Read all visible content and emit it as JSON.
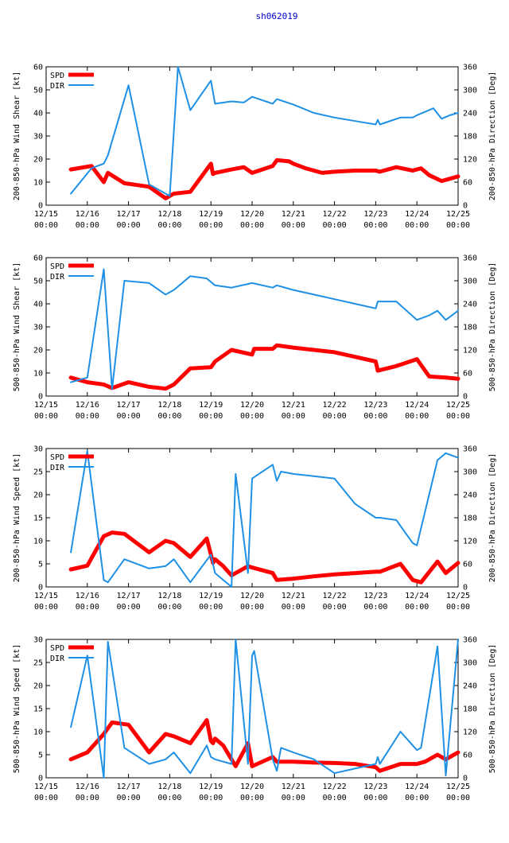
{
  "title": "sh062019",
  "colors": {
    "spd": "#ff0000",
    "dir": "#1e90e6",
    "title": "#0000cc"
  },
  "x_ticks": [
    "12/15\n00:00",
    "12/16\n00:00",
    "12/17\n00:00",
    "12/18\n00:00",
    "12/19\n00:00",
    "12/20\n00:00",
    "12/21\n00:00",
    "12/22\n00:00",
    "12/23\n00:00",
    "12/24\n00:00",
    "12/25\n00:00"
  ],
  "chart_data": [
    {
      "type": "line",
      "ylabel": "200-850-hPa Wind Shear [kt]",
      "y2label": "200-850-hPa Direction [Deg]",
      "ylim": [
        0,
        60
      ],
      "y2lim": [
        0,
        360
      ],
      "yticks": [
        0,
        10,
        20,
        30,
        40,
        50,
        60
      ],
      "y2ticks": [
        0,
        60,
        120,
        180,
        240,
        300,
        360
      ],
      "legend": [
        "SPD",
        "DIR"
      ],
      "xlim": [
        0,
        10
      ],
      "series": [
        {
          "name": "SPD",
          "axis": "left",
          "x": [
            0.6,
            1.1,
            1.4,
            1.5,
            1.9,
            2.5,
            2.9,
            3.1,
            3.5,
            4.0,
            4.05,
            4.1,
            4.5,
            4.8,
            5.0,
            5.5,
            5.6,
            5.9,
            6.0,
            6.3,
            6.5,
            6.7,
            7.0,
            7.5,
            8.0,
            8.1,
            8.5,
            8.9,
            9.1,
            9.3,
            9.6,
            10.0
          ],
          "values": [
            15.5,
            17,
            10,
            14,
            9.5,
            8,
            3,
            5,
            5.8,
            18,
            13.5,
            14,
            15.5,
            16.5,
            14,
            17,
            19.5,
            19,
            18,
            16,
            15,
            14,
            14.5,
            15,
            15,
            14.5,
            16.5,
            15,
            16,
            13,
            10.5,
            12.5
          ]
        },
        {
          "name": "DIR",
          "axis": "right",
          "x": [
            0.6,
            1.1,
            1.4,
            1.5,
            2.0,
            2.5,
            3.0,
            3.2,
            3.5,
            4.0,
            4.1,
            4.5,
            4.8,
            5.0,
            5.5,
            5.6,
            6.0,
            6.5,
            7.0,
            7.5,
            8.0,
            8.05,
            8.1,
            8.6,
            8.9,
            9.0,
            9.4,
            9.6,
            9.8,
            10.0
          ],
          "values": [
            30,
            96,
            108,
            130,
            312,
            54,
            24,
            360,
            247,
            324,
            264,
            270,
            267,
            282,
            264,
            276,
            262,
            240,
            228,
            219,
            210,
            222,
            210,
            228,
            228,
            234,
            252,
            225,
            234,
            240
          ]
        }
      ]
    },
    {
      "type": "line",
      "ylabel": "500-850-hPa Wind Shear [kt]",
      "y2label": "500-850-hPa Direction [Deg]",
      "ylim": [
        0,
        60
      ],
      "y2lim": [
        0,
        360
      ],
      "yticks": [
        0,
        10,
        20,
        30,
        40,
        50,
        60
      ],
      "y2ticks": [
        0,
        60,
        120,
        180,
        240,
        300,
        360
      ],
      "legend": [
        "SPD",
        "DIR"
      ],
      "xlim": [
        0,
        10
      ],
      "series": [
        {
          "name": "SPD",
          "axis": "left",
          "x": [
            0.6,
            1.0,
            1.4,
            1.6,
            2.0,
            2.5,
            2.9,
            3.1,
            3.5,
            4.0,
            4.1,
            4.5,
            5.0,
            5.05,
            5.5,
            5.6,
            6.0,
            6.5,
            7.0,
            7.5,
            8.0,
            8.05,
            8.5,
            9.0,
            9.3,
            9.7,
            10.0
          ],
          "values": [
            8,
            6,
            5,
            3.5,
            6,
            4,
            3.2,
            5,
            12,
            12.5,
            15,
            20,
            18,
            20.5,
            20.5,
            22,
            21,
            20,
            19,
            17,
            15,
            11,
            13,
            16,
            8.5,
            8,
            7.5
          ]
        },
        {
          "name": "DIR",
          "axis": "right",
          "x": [
            0.6,
            1.0,
            1.4,
            1.6,
            1.9,
            2.5,
            2.9,
            3.1,
            3.5,
            3.9,
            4.1,
            4.5,
            5.0,
            5.5,
            5.6,
            6.0,
            6.5,
            7.0,
            7.5,
            8.0,
            8.05,
            8.5,
            9.0,
            9.3,
            9.5,
            9.7,
            10.0
          ],
          "values": [
            36,
            48,
            330,
            18,
            300,
            294,
            264,
            276,
            312,
            306,
            288,
            282,
            294,
            282,
            288,
            276,
            264,
            252,
            240,
            228,
            246,
            246,
            198,
            210,
            222,
            198,
            222
          ]
        }
      ]
    },
    {
      "type": "line",
      "ylabel": "200-850-hPa Wind Speed [kt]",
      "y2label": "200-850-hPa Direction [Deg]",
      "ylim": [
        0,
        30
      ],
      "y2lim": [
        0,
        360
      ],
      "yticks": [
        0,
        5,
        10,
        15,
        20,
        25,
        30
      ],
      "y2ticks": [
        0,
        60,
        120,
        180,
        240,
        300,
        360
      ],
      "legend": [
        "SPD",
        "DIR"
      ],
      "xlim": [
        0,
        10
      ],
      "series": [
        {
          "name": "SPD",
          "axis": "left",
          "x": [
            0.6,
            1.0,
            1.4,
            1.6,
            1.9,
            2.5,
            2.9,
            3.1,
            3.5,
            3.9,
            4.0,
            4.05,
            4.1,
            4.3,
            4.5,
            4.9,
            5.0,
            5.5,
            5.6,
            6.0,
            6.5,
            7.0,
            7.5,
            8.0,
            8.1,
            8.6,
            8.9,
            9.1,
            9.5,
            9.7,
            10.0
          ],
          "values": [
            3.8,
            4.6,
            11,
            11.8,
            11.5,
            7.5,
            10,
            9.5,
            6.5,
            10.5,
            7,
            5.2,
            6,
            4.5,
            2.5,
            4.5,
            4.2,
            3,
            1.5,
            1.8,
            2.3,
            2.7,
            3,
            3.3,
            3.3,
            5,
            1.5,
            1,
            5.5,
            3,
            5.2
          ]
        },
        {
          "name": "DIR",
          "axis": "right",
          "x": [
            0.6,
            1.0,
            1.4,
            1.5,
            1.9,
            2.5,
            2.9,
            3.1,
            3.5,
            4.0,
            4.1,
            4.5,
            4.6,
            4.9,
            5.0,
            5.5,
            5.6,
            5.7,
            6.0,
            6.5,
            7.0,
            7.5,
            8.0,
            8.1,
            8.5,
            8.9,
            9.0,
            9.5,
            9.7,
            10.0
          ],
          "values": [
            90,
            354,
            18,
            12,
            72,
            48,
            54,
            72,
            12,
            84,
            36,
            0,
            294,
            36,
            282,
            318,
            276,
            300,
            294,
            288,
            282,
            216,
            180,
            180,
            174,
            114,
            108,
            330,
            348,
            336
          ]
        }
      ]
    },
    {
      "type": "line",
      "ylabel": "500-850-hPa Wind Speed [kt]",
      "y2label": "500-850-hPa Direction [Deg]",
      "ylim": [
        0,
        30
      ],
      "y2lim": [
        0,
        360
      ],
      "yticks": [
        0,
        5,
        10,
        15,
        20,
        25,
        30
      ],
      "y2ticks": [
        0,
        60,
        120,
        180,
        240,
        300,
        360
      ],
      "legend": [
        "SPD",
        "DIR"
      ],
      "xlim": [
        0,
        10
      ],
      "series": [
        {
          "name": "SPD",
          "axis": "left",
          "x": [
            0.6,
            1.0,
            1.4,
            1.6,
            2.0,
            2.5,
            2.9,
            3.1,
            3.5,
            3.9,
            4.0,
            4.05,
            4.1,
            4.3,
            4.6,
            4.9,
            5.0,
            5.5,
            5.6,
            6.0,
            6.5,
            7.0,
            7.5,
            8.0,
            8.1,
            8.6,
            9.0,
            9.2,
            9.5,
            9.7,
            10.0
          ],
          "values": [
            4,
            5.5,
            9.5,
            12,
            11.5,
            5.5,
            9.5,
            9,
            7.5,
            12.5,
            8,
            7.5,
            8.5,
            7,
            2.5,
            7.5,
            2.5,
            4.5,
            3.5,
            3.5,
            3.3,
            3.2,
            3,
            2.3,
            1.5,
            3,
            3,
            3.5,
            5,
            4,
            5.5
          ]
        },
        {
          "name": "DIR",
          "axis": "right",
          "x": [
            0.6,
            1.0,
            1.4,
            1.5,
            1.9,
            2.5,
            2.9,
            3.1,
            3.5,
            3.9,
            4.0,
            4.1,
            4.5,
            4.6,
            4.9,
            5.0,
            5.05,
            5.5,
            5.6,
            5.7,
            6.0,
            6.5,
            7.0,
            7.5,
            8.0,
            8.05,
            8.1,
            8.6,
            9.0,
            9.1,
            9.5,
            9.7,
            10.0
          ],
          "values": [
            132,
            318,
            0,
            354,
            78,
            36,
            48,
            66,
            12,
            84,
            54,
            48,
            36,
            360,
            36,
            318,
            330,
            48,
            18,
            78,
            66,
            48,
            12,
            24,
            36,
            54,
            36,
            120,
            72,
            78,
            342,
            6,
            360
          ]
        }
      ]
    }
  ]
}
